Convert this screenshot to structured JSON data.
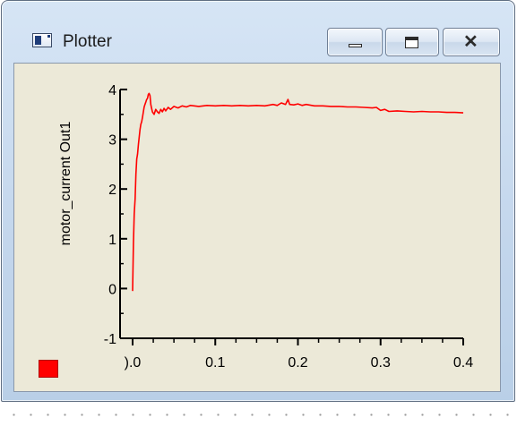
{
  "window": {
    "title": "Plotter",
    "icons": {
      "app": "plot-window-icon",
      "minimize": "minimize-icon",
      "maximize": "maximize-icon",
      "close": "close-icon"
    },
    "close_glyph": "✕"
  },
  "colors": {
    "series": "#ff0000",
    "background": "#ece9d8",
    "titlebar": "#c3d6ec"
  },
  "chart_data": {
    "type": "line",
    "ylabel": "motor_current Out1",
    "xlabel": "",
    "xlim": [
      0.0,
      0.4
    ],
    "ylim": [
      -1,
      4
    ],
    "xticks": [
      0.0,
      0.1,
      0.2,
      0.3,
      0.4
    ],
    "xtick_labels": [
      ").0",
      "0.1",
      "0.2",
      "0.3",
      "0.4"
    ],
    "yticks": [
      -1,
      0,
      1,
      2,
      3,
      4
    ],
    "ytick_labels": [
      "-1",
      "0",
      "1",
      "2",
      "3",
      "4"
    ],
    "grid": false,
    "legend": "bottom-left swatch",
    "series": [
      {
        "color": "#ff0000",
        "x": [
          0.0,
          0.001,
          0.002,
          0.003,
          0.004,
          0.005,
          0.006,
          0.007,
          0.008,
          0.009,
          0.01,
          0.011,
          0.012,
          0.013,
          0.014,
          0.015,
          0.016,
          0.017,
          0.018,
          0.019,
          0.02,
          0.021,
          0.022,
          0.023,
          0.024,
          0.026,
          0.028,
          0.03,
          0.032,
          0.034,
          0.036,
          0.038,
          0.04,
          0.043,
          0.046,
          0.05,
          0.055,
          0.06,
          0.065,
          0.07,
          0.08,
          0.09,
          0.1,
          0.11,
          0.12,
          0.13,
          0.14,
          0.15,
          0.16,
          0.17,
          0.175,
          0.18,
          0.185,
          0.188,
          0.19,
          0.195,
          0.2,
          0.205,
          0.21,
          0.22,
          0.23,
          0.24,
          0.25,
          0.26,
          0.27,
          0.28,
          0.29,
          0.295,
          0.3,
          0.305,
          0.31,
          0.32,
          0.33,
          0.34,
          0.35,
          0.36,
          0.37,
          0.38,
          0.39,
          0.4
        ],
        "y": [
          -0.05,
          0.9,
          1.5,
          1.8,
          2.3,
          2.6,
          2.7,
          2.9,
          3.05,
          3.2,
          3.3,
          3.35,
          3.45,
          3.55,
          3.65,
          3.7,
          3.75,
          3.8,
          3.82,
          3.9,
          3.92,
          3.88,
          3.7,
          3.62,
          3.55,
          3.5,
          3.6,
          3.55,
          3.52,
          3.6,
          3.55,
          3.62,
          3.57,
          3.64,
          3.6,
          3.66,
          3.63,
          3.67,
          3.65,
          3.68,
          3.66,
          3.68,
          3.67,
          3.68,
          3.67,
          3.68,
          3.67,
          3.68,
          3.67,
          3.7,
          3.68,
          3.73,
          3.7,
          3.8,
          3.7,
          3.69,
          3.71,
          3.68,
          3.7,
          3.67,
          3.67,
          3.66,
          3.66,
          3.65,
          3.65,
          3.64,
          3.63,
          3.64,
          3.58,
          3.6,
          3.56,
          3.57,
          3.56,
          3.55,
          3.56,
          3.55,
          3.55,
          3.54,
          3.54,
          3.53
        ]
      }
    ]
  }
}
